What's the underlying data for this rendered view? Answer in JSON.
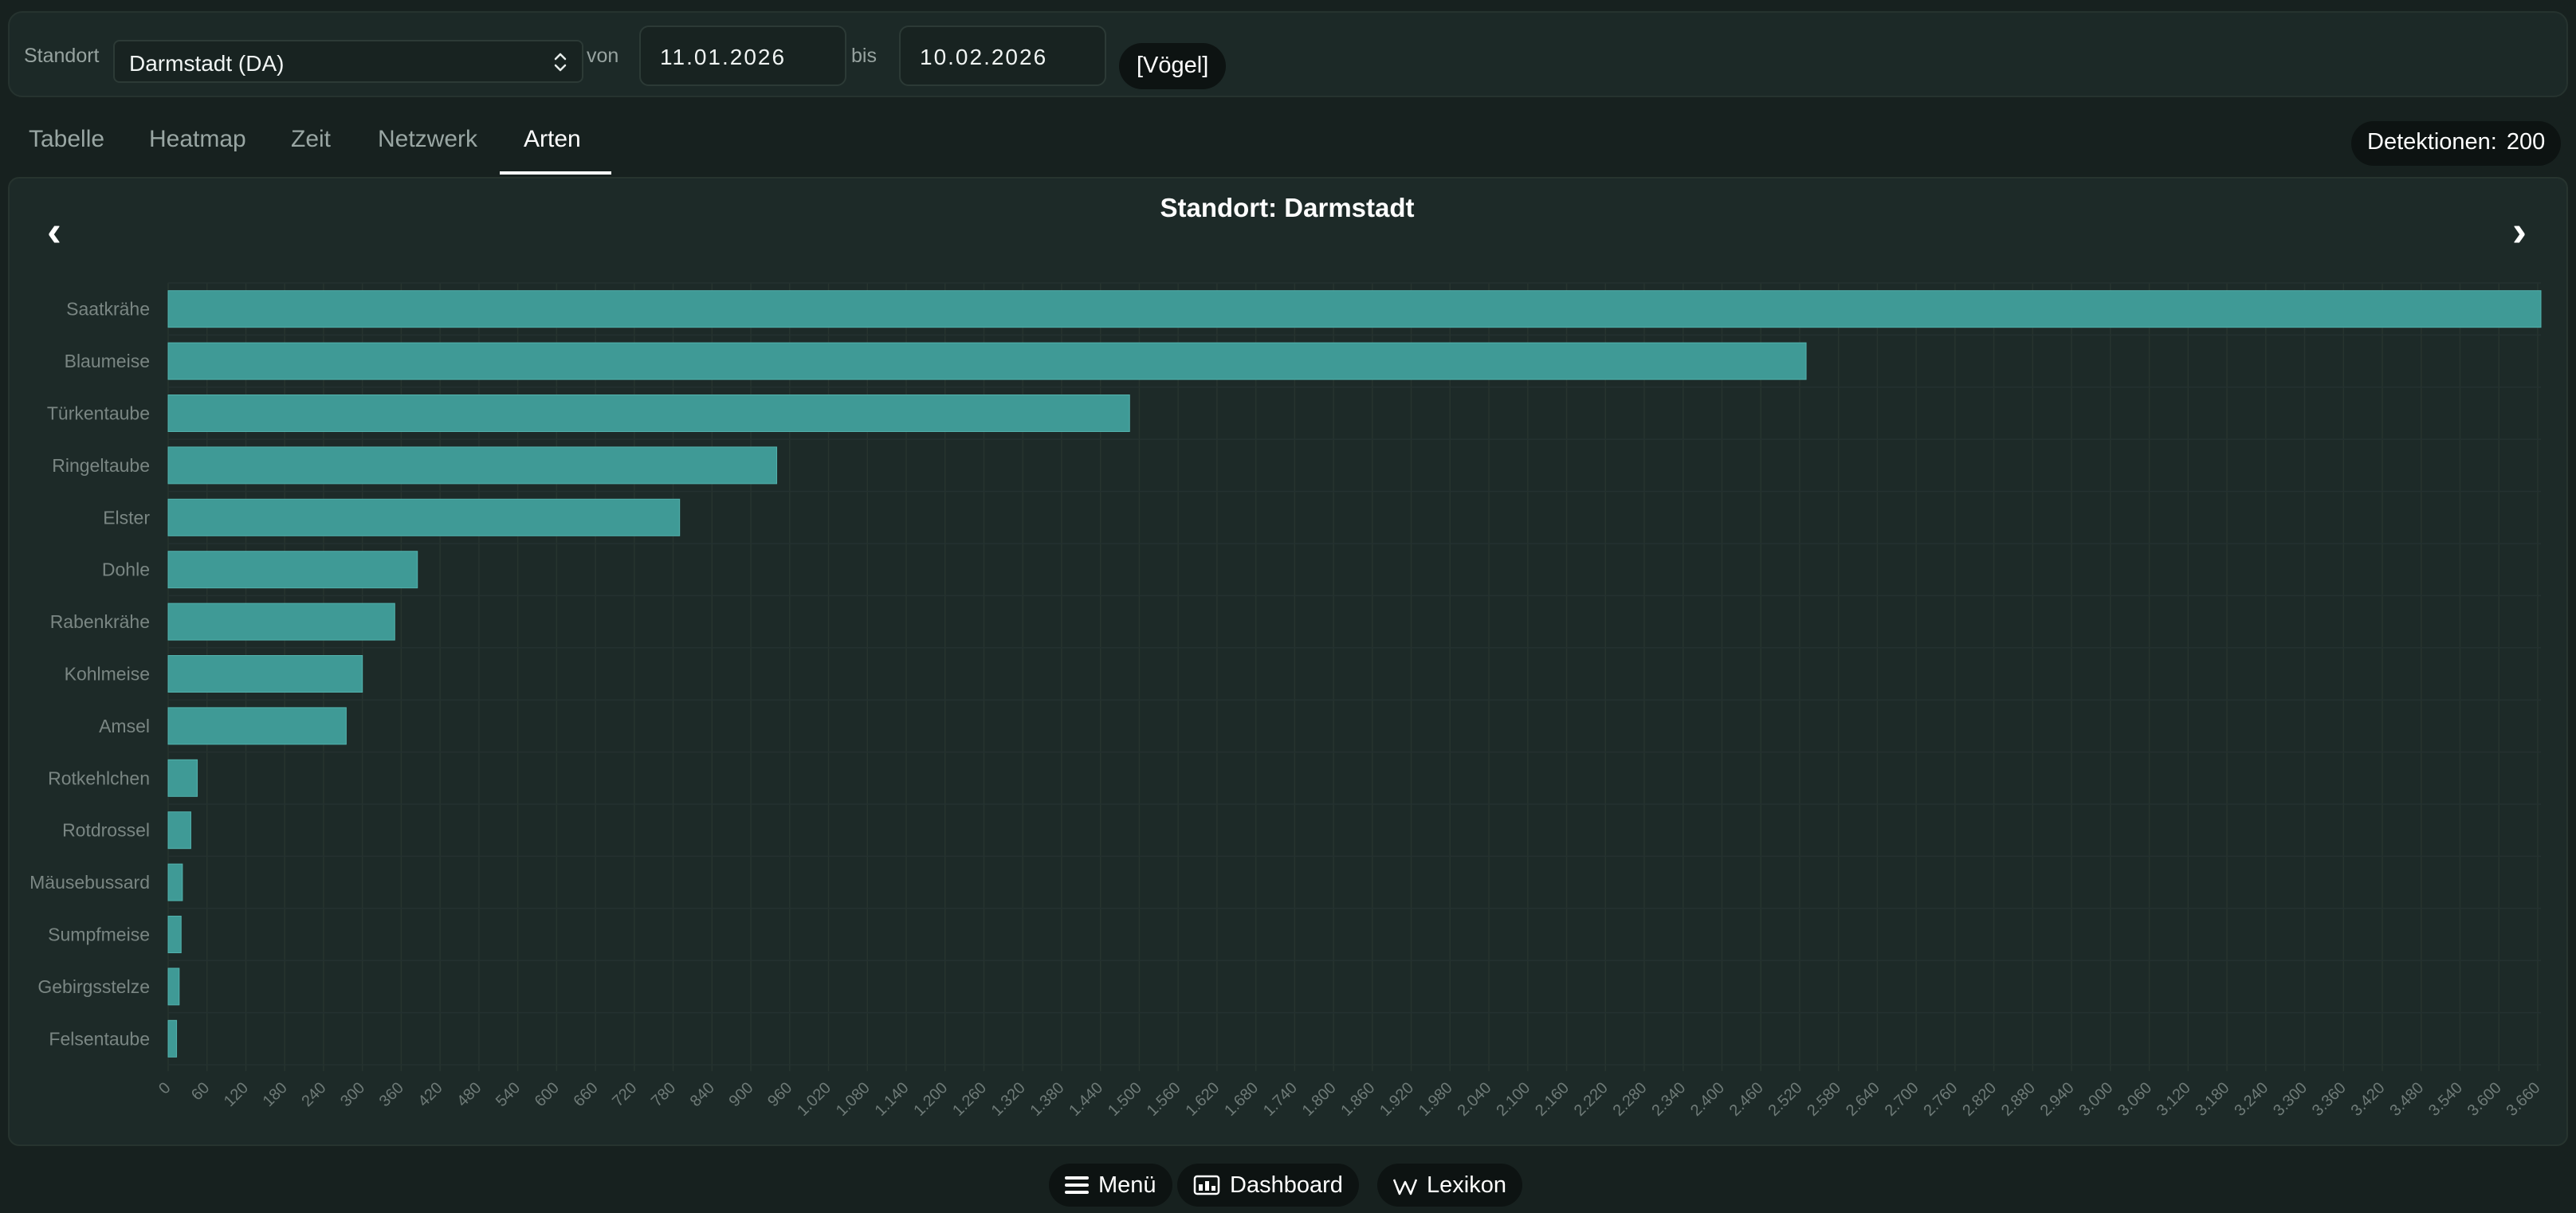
{
  "filters": {
    "site_label": "Standort",
    "site_value": "Darmstadt (DA)",
    "from_label": "von",
    "from_value": "11.01.2026",
    "to_label": "bis",
    "to_value": "10.02.2026",
    "category_chip": "[Vögel]"
  },
  "tabs": [
    {
      "label": "Tabelle"
    },
    {
      "label": "Heatmap"
    },
    {
      "label": "Zeit"
    },
    {
      "label": "Netzwerk"
    },
    {
      "label": "Arten"
    }
  ],
  "active_tab": "Arten",
  "detections": {
    "label": "Detektionen:",
    "value": "200"
  },
  "nav": {
    "prev": "‹",
    "next": "›"
  },
  "chart_data": {
    "type": "bar",
    "orientation": "horizontal",
    "title": "Standort: Darmstadt",
    "categories": [
      "Saatkrähe",
      "Blaumeise",
      "Türkentaube",
      "Ringeltaube",
      "Elster",
      "Dohle",
      "Rabenkrähe",
      "Kohlmeise",
      "Amsel",
      "Rotkehlchen",
      "Rotdrossel",
      "Mäusebussard",
      "Sumpfmeise",
      "Gebirgsstelze",
      "Felsentaube"
    ],
    "values": [
      3665,
      2530,
      1485,
      940,
      790,
      385,
      350,
      300,
      275,
      45,
      35,
      22,
      20,
      17,
      13
    ],
    "xlim": [
      0,
      3665
    ],
    "xticks": [
      "0",
      "60",
      "120",
      "180",
      "240",
      "300",
      "360",
      "420",
      "480",
      "540",
      "600",
      "660",
      "720",
      "780",
      "840",
      "900",
      "960",
      "1.020",
      "1.080",
      "1.140",
      "1.200",
      "1.260",
      "1.320",
      "1.380",
      "1.440",
      "1.500",
      "1.560",
      "1.620",
      "1.680",
      "1.740",
      "1.800",
      "1.860",
      "1.920",
      "1.980",
      "2.040",
      "2.100",
      "2.160",
      "2.220",
      "2.280",
      "2.340",
      "2.400",
      "2.460",
      "2.520",
      "2.580",
      "2.640",
      "2.700",
      "2.760",
      "2.820",
      "2.880",
      "2.940",
      "3.000",
      "3.060",
      "3.120",
      "3.180",
      "3.240",
      "3.300",
      "3.360",
      "3.420",
      "3.480",
      "3.540",
      "3.600",
      "3.660"
    ],
    "xlabel": "",
    "ylabel": "",
    "grid": true,
    "legend": "none",
    "bar_color": "#3f9a96"
  },
  "bottom_nav": [
    {
      "label": "Menü",
      "icon": "hamburger-icon"
    },
    {
      "label": "Dashboard",
      "icon": "dashboard-icon"
    },
    {
      "label": "Lexikon",
      "icon": "wikipedia-icon"
    }
  ]
}
